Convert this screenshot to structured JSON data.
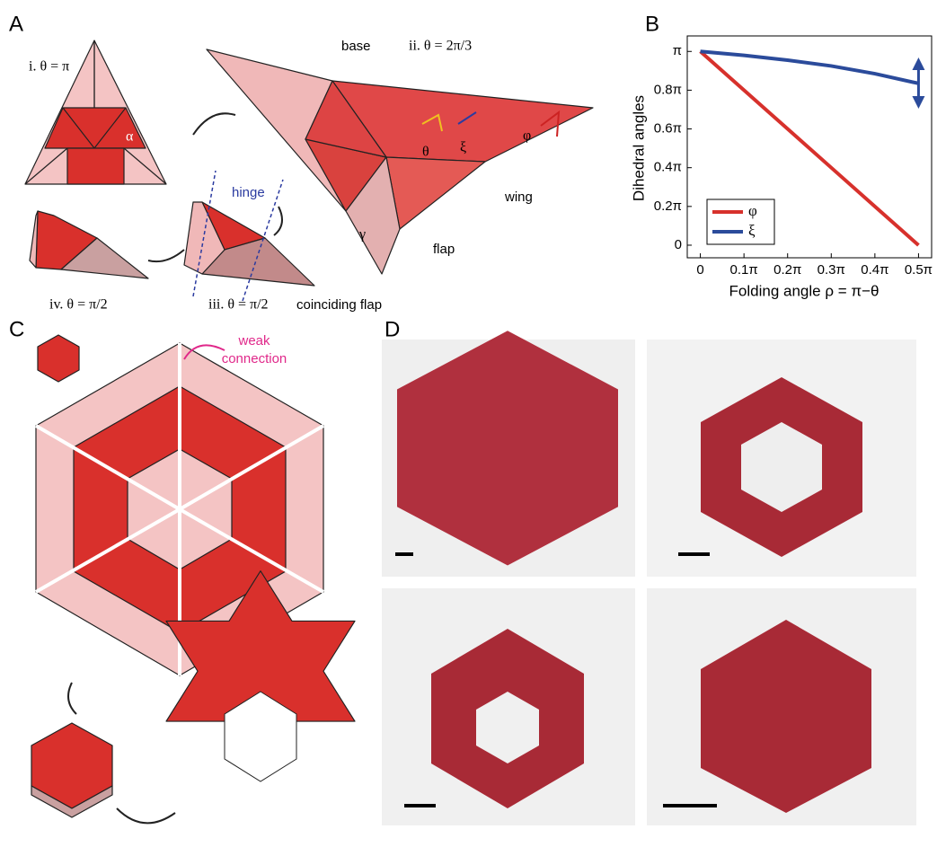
{
  "panel_labels": [
    "A",
    "B",
    "C",
    "D"
  ],
  "diagram_a": {
    "step_i": "i. θ = π",
    "alpha": "α",
    "step_ii": "ii. θ = 2π/3",
    "base": "base",
    "theta": "θ",
    "xi": "ξ",
    "phi": "φ",
    "gamma": "γ",
    "wing": "wing",
    "flap": "flap",
    "hinge": "hinge",
    "step_iii": "iii. θ = π/2",
    "step_iv": "iv. θ = π/2",
    "coinciding_flap": "coinciding flap"
  },
  "diagram_c": {
    "weak_connection": [
      "weak",
      "connection"
    ]
  },
  "chart_data": {
    "type": "line",
    "xlabel": "Folding angle ρ = π−θ",
    "ylabel": "Dihedral angles",
    "x": [
      0,
      0.1,
      0.2,
      0.3,
      0.4,
      0.5
    ],
    "series": [
      {
        "name": "φ",
        "color": "#d7312c",
        "values": [
          1,
          0.8,
          0.6,
          0.4,
          0.2,
          0
        ]
      },
      {
        "name": "ξ",
        "color": "#2b4b9b",
        "values": [
          1,
          0.98,
          0.955,
          0.925,
          0.885,
          0.835
        ]
      }
    ],
    "xlim": [
      -0.03,
      0.53
    ],
    "ylim": [
      -0.065,
      1.08
    ],
    "xticks": [
      0,
      {
        "value": 0.1,
        "label": "0.1π"
      },
      {
        "value": 0.2,
        "label": "0.2π"
      },
      {
        "value": 0.3,
        "label": "0.3π"
      },
      {
        "value": 0.4,
        "label": "0.4π"
      },
      {
        "value": 0.5,
        "label": "0.5π"
      }
    ],
    "yticks": [
      0,
      {
        "value": 0.2,
        "label": "0.2π"
      },
      {
        "value": 0.4,
        "label": "0.4π"
      },
      {
        "value": 0.6,
        "label": "0.6π"
      },
      {
        "value": 0.8,
        "label": "0.8π"
      },
      {
        "value": 1,
        "label": "π"
      }
    ],
    "grid": false,
    "legend": "lower left"
  }
}
